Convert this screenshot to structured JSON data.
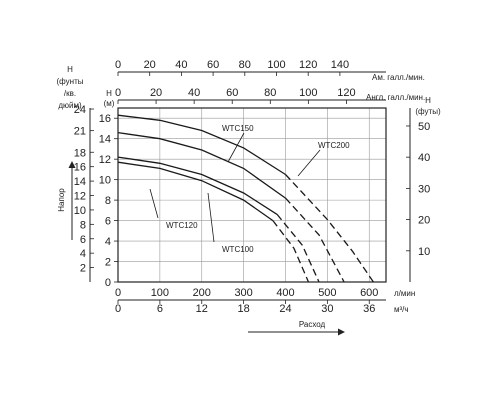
{
  "chart_data": {
    "type": "line",
    "title": "",
    "grid": true,
    "axes": {
      "left_outer": {
        "title": [
          "H",
          "(фунты",
          "/кв.",
          "дюйм)"
        ],
        "ticks": [
          2,
          4,
          6,
          8,
          10,
          12,
          14,
          16,
          18,
          21,
          24
        ],
        "range": [
          0,
          24
        ]
      },
      "left_inner": {
        "title": [
          "H",
          "(м)"
        ],
        "ticks": [
          0,
          2,
          4,
          6,
          8,
          10,
          12,
          14,
          16
        ],
        "range": [
          0,
          17
        ]
      },
      "right": {
        "title": [
          "H",
          "(футы)"
        ],
        "ticks": [
          10,
          20,
          30,
          40,
          50
        ],
        "range": [
          0,
          55.8
        ]
      },
      "top_outer": {
        "title": "Ам. галл./мин.",
        "ticks": [
          0,
          20,
          40,
          60,
          80,
          100,
          120,
          140
        ],
        "range": [
          0,
          160
        ]
      },
      "top_inner": {
        "title": "Англ. галл./мин.",
        "ticks": [
          0,
          20,
          40,
          60,
          80,
          100,
          120
        ],
        "range": [
          0,
          133
        ]
      },
      "bottom_lpm": {
        "title": "л/мин",
        "ticks": [
          0,
          100,
          200,
          300,
          400,
          500,
          600
        ],
        "range": [
          0,
          640
        ]
      },
      "bottom_m3h": {
        "title": "м³/ч",
        "ticks": [
          0,
          6,
          12,
          18,
          24,
          30,
          36
        ],
        "range": [
          0,
          38.4
        ]
      },
      "ylabel": "Напор",
      "xlabel": "Расход"
    },
    "series": [
      {
        "name": "WTC100",
        "solid": [
          [
            0,
            11.7
          ],
          [
            100,
            11.1
          ],
          [
            200,
            9.9
          ],
          [
            300,
            8.0
          ],
          [
            370,
            6.0
          ]
        ],
        "dashed": [
          [
            370,
            6.0
          ],
          [
            420,
            3.3
          ],
          [
            455,
            0
          ]
        ]
      },
      {
        "name": "WTC120",
        "solid": [
          [
            0,
            12.2
          ],
          [
            100,
            11.6
          ],
          [
            200,
            10.5
          ],
          [
            300,
            8.7
          ],
          [
            380,
            6.6
          ]
        ],
        "dashed": [
          [
            380,
            6.6
          ],
          [
            440,
            3.6
          ],
          [
            480,
            0
          ]
        ]
      },
      {
        "name": "WTC150",
        "solid": [
          [
            0,
            14.6
          ],
          [
            100,
            14.0
          ],
          [
            200,
            12.9
          ],
          [
            300,
            11.1
          ],
          [
            400,
            8.2
          ]
        ],
        "dashed": [
          [
            400,
            8.2
          ],
          [
            480,
            4.6
          ],
          [
            540,
            0
          ]
        ]
      },
      {
        "name": "WTC200",
        "solid": [
          [
            0,
            16.3
          ],
          [
            100,
            15.8
          ],
          [
            200,
            14.8
          ],
          [
            300,
            13.1
          ],
          [
            400,
            10.5
          ]
        ],
        "dashed": [
          [
            400,
            10.5
          ],
          [
            500,
            6.1
          ],
          [
            560,
            3.0
          ],
          [
            610,
            0
          ]
        ]
      }
    ],
    "colors": {
      "curve": "#1a1a1a",
      "grid": "#9a9a9a",
      "axis": "#222222"
    }
  }
}
